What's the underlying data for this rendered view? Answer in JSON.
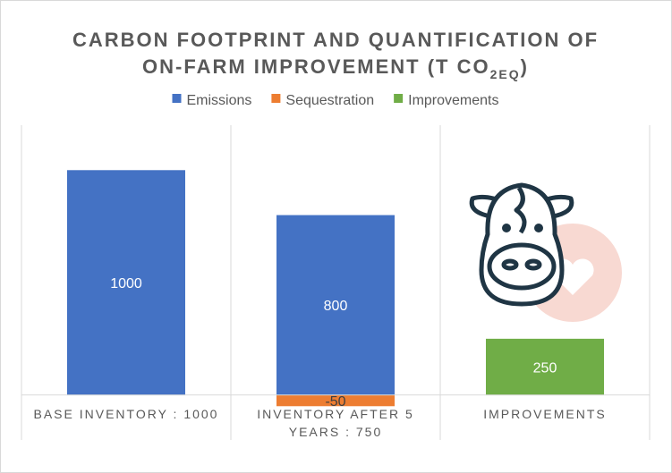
{
  "chart_data": {
    "type": "bar",
    "title": {
      "line1": "CARBON FOOTPRINT AND QUANTIFICATION OF",
      "line2": "ON-FARM IMPROVEMENT (T CO",
      "subscript": "2EQ",
      "line2_end": ")"
    },
    "categories": [
      "BASE INVENTORY : 1000",
      "INVENTORY AFTER 5 YEARS : 750",
      "IMPROVEMENTS"
    ],
    "series": [
      {
        "name": "Emissions",
        "color": "#4472c4",
        "values": [
          1000,
          800,
          null
        ]
      },
      {
        "name": "Sequestration",
        "color": "#ed7d31",
        "values": [
          null,
          -50,
          null
        ]
      },
      {
        "name": "Improvements",
        "color": "#70ad47",
        "values": [
          null,
          null,
          250
        ]
      }
    ],
    "ylim": [
      -200,
      1200
    ],
    "legend": "top"
  }
}
